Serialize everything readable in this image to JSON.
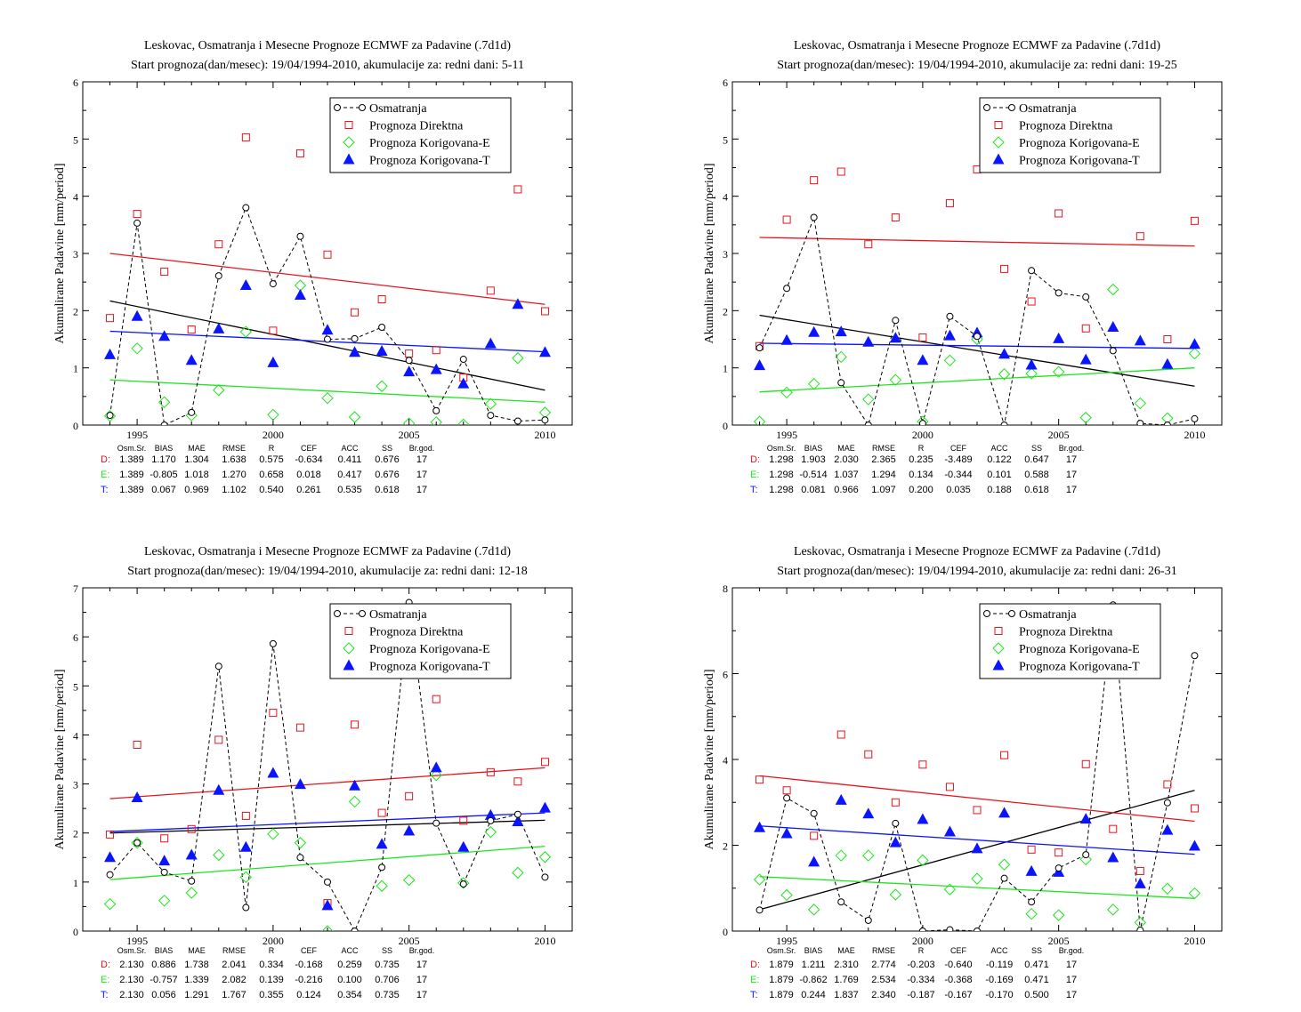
{
  "colors": {
    "observed": "#000000",
    "direct": "#e8141c",
    "corrected_e": "#1ee61e",
    "corrected_t": "#0a14ff"
  },
  "legend": [
    "Osmatranja",
    "Prognoza Direktna",
    "Prognoza Korigovana-E",
    "Prognoza Korigovana-T"
  ],
  "stats_header": [
    "Osm.Sr.",
    "BIAS",
    "MAE",
    "RMSE",
    "R",
    "CEF",
    "ACC",
    "SS",
    "Br.god."
  ],
  "chart_data": [
    {
      "type": "scatter",
      "title": "Leskovac, Osmatranja i Mesecne Prognoze ECMWF za Padavine (.7d1d)",
      "subtitle": "Start prognoza(dan/mesec): 19/04/1994-2010, akumulacije za: redni dani: 5-11",
      "ylabel": "Akumulirane Padavine [mm/period]",
      "xlim": [
        1993,
        2011
      ],
      "ylim": [
        0,
        6
      ],
      "xticks": [
        1995,
        2000,
        2005,
        2010
      ],
      "yticks": [
        0,
        1,
        2,
        3,
        4,
        5,
        6
      ],
      "x": [
        1994,
        1995,
        1996,
        1997,
        1998,
        1999,
        2000,
        2001,
        2002,
        2003,
        2004,
        2005,
        2006,
        2007,
        2008,
        2009,
        2010
      ],
      "series": [
        {
          "name": "Osmatranja",
          "values": [
            0.17,
            3.53,
            0.0,
            0.22,
            2.61,
            3.8,
            2.47,
            3.3,
            1.5,
            1.51,
            1.71,
            1.13,
            0.25,
            1.15,
            0.17,
            0.07,
            0.09
          ]
        },
        {
          "name": "Prognoza Direktna",
          "values": [
            1.87,
            3.69,
            2.68,
            1.67,
            3.16,
            5.03,
            1.65,
            4.75,
            2.98,
            1.97,
            2.2,
            1.25,
            1.31,
            0.83,
            2.35,
            4.12,
            1.99
          ]
        },
        {
          "name": "Prognoza Korigovana-E",
          "values": [
            0.16,
            1.34,
            0.4,
            0.17,
            0.61,
            1.63,
            0.18,
            2.44,
            0.47,
            0.14,
            0.68,
            0.03,
            0.05,
            0.01,
            0.37,
            1.17,
            0.22
          ]
        },
        {
          "name": "Prognoza Korigovana-T",
          "values": [
            1.23,
            1.9,
            1.55,
            1.13,
            1.68,
            2.44,
            1.09,
            2.27,
            1.66,
            1.27,
            1.29,
            0.93,
            0.97,
            0.72,
            1.42,
            2.11,
            1.27
          ]
        }
      ],
      "trend_lines": [
        {
          "series": "Osmatranja",
          "y_start": 2.17,
          "y_end": 0.61
        },
        {
          "series": "Prognoza Direktna",
          "y_start": 3.0,
          "y_end": 2.11
        },
        {
          "series": "Prognoza Korigovana-E",
          "y_start": 0.79,
          "y_end": 0.4
        },
        {
          "series": "Prognoza Korigovana-T",
          "y_start": 1.64,
          "y_end": 1.28
        }
      ],
      "stats": [
        {
          "key": "D:",
          "values": [
            "1.389",
            "1.170",
            "1.304",
            "1.638",
            "0.575",
            "-0.634",
            "0.411",
            "0.676",
            "17"
          ]
        },
        {
          "key": "E:",
          "values": [
            "1.389",
            "-0.805",
            "1.018",
            "1.270",
            "0.658",
            "0.018",
            "0.417",
            "0.676",
            "17"
          ]
        },
        {
          "key": "T:",
          "values": [
            "1.389",
            "0.067",
            "0.969",
            "1.102",
            "0.540",
            "0.261",
            "0.535",
            "0.618",
            "17"
          ]
        }
      ]
    },
    {
      "type": "scatter",
      "title": "Leskovac, Osmatranja i Mesecne Prognoze ECMWF za Padavine (.7d1d)",
      "subtitle": "Start prognoza(dan/mesec): 19/04/1994-2010, akumulacije za: redni dani: 19-25",
      "ylabel": "Akumulirane Padavine [mm/period]",
      "xlim": [
        1993,
        2011
      ],
      "ylim": [
        0,
        6
      ],
      "xticks": [
        1995,
        2000,
        2005,
        2010
      ],
      "yticks": [
        0,
        1,
        2,
        3,
        4,
        5,
        6
      ],
      "x": [
        1994,
        1995,
        1996,
        1997,
        1998,
        1999,
        2000,
        2001,
        2002,
        2003,
        2004,
        2005,
        2006,
        2007,
        2008,
        2009,
        2010
      ],
      "series": [
        {
          "name": "Osmatranja",
          "values": [
            1.35,
            2.39,
            3.63,
            0.74,
            0.0,
            1.83,
            0.03,
            1.9,
            1.55,
            0.0,
            2.7,
            2.31,
            2.24,
            1.3,
            0.03,
            0.0,
            0.11
          ]
        },
        {
          "name": "Prognoza Direktna",
          "values": [
            1.38,
            3.59,
            4.28,
            4.43,
            3.16,
            3.63,
            1.53,
            3.88,
            4.47,
            2.73,
            2.16,
            3.7,
            1.69,
            4.78,
            3.3,
            1.5,
            3.57
          ]
        },
        {
          "name": "Prognoza Korigovana-E",
          "values": [
            0.06,
            0.57,
            0.72,
            1.19,
            0.45,
            0.79,
            0.06,
            1.13,
            1.5,
            0.89,
            0.9,
            0.93,
            0.13,
            2.37,
            0.38,
            0.12,
            1.25
          ]
        },
        {
          "name": "Prognoza Korigovana-T",
          "values": [
            1.04,
            1.48,
            1.62,
            1.63,
            1.45,
            1.52,
            1.13,
            1.56,
            1.61,
            1.24,
            1.05,
            1.51,
            1.14,
            1.71,
            1.47,
            1.06,
            1.41
          ]
        }
      ],
      "trend_lines": [
        {
          "series": "Osmatranja",
          "y_start": 1.92,
          "y_end": 0.68
        },
        {
          "series": "Prognoza Direktna",
          "y_start": 3.28,
          "y_end": 3.13
        },
        {
          "series": "Prognoza Korigovana-E",
          "y_start": 0.58,
          "y_end": 1.0
        },
        {
          "series": "Prognoza Korigovana-T",
          "y_start": 1.43,
          "y_end": 1.34
        }
      ],
      "stats": [
        {
          "key": "D:",
          "values": [
            "1.298",
            "1.903",
            "2.030",
            "2.365",
            "0.235",
            "-3.489",
            "0.122",
            "0.647",
            "17"
          ]
        },
        {
          "key": "E:",
          "values": [
            "1.298",
            "-0.514",
            "1.037",
            "1.294",
            "0.134",
            "-0.344",
            "0.101",
            "0.588",
            "17"
          ]
        },
        {
          "key": "T:",
          "values": [
            "1.298",
            "0.081",
            "0.966",
            "1.097",
            "0.200",
            "0.035",
            "0.188",
            "0.618",
            "17"
          ]
        }
      ]
    },
    {
      "type": "scatter",
      "title": "Leskovac, Osmatranja i Mesecne Prognoze ECMWF za Padavine (.7d1d)",
      "subtitle": "Start prognoza(dan/mesec): 19/04/1994-2010, akumulacije za: redni dani: 12-18",
      "ylabel": "Akumulirane Padavine [mm/period]",
      "xlim": [
        1993,
        2011
      ],
      "ylim": [
        0,
        7
      ],
      "xticks": [
        1995,
        2000,
        2005,
        2010
      ],
      "yticks": [
        0,
        1,
        2,
        3,
        4,
        5,
        6,
        7
      ],
      "x": [
        1994,
        1995,
        1996,
        1997,
        1998,
        1999,
        2000,
        2001,
        2002,
        2003,
        2004,
        2005,
        2006,
        2007,
        2008,
        2009,
        2010
      ],
      "series": [
        {
          "name": "Osmatranja",
          "values": [
            1.15,
            1.8,
            1.2,
            1.02,
            5.4,
            0.48,
            5.86,
            1.5,
            1.0,
            0.0,
            1.3,
            6.7,
            2.2,
            0.96,
            2.25,
            2.38,
            1.1
          ]
        },
        {
          "name": "Prognoza Direktna",
          "values": [
            1.97,
            3.8,
            1.89,
            2.08,
            3.9,
            2.35,
            4.45,
            4.15,
            0.57,
            4.21,
            2.41,
            2.75,
            4.73,
            2.25,
            3.24,
            3.05,
            3.45
          ]
        },
        {
          "name": "Prognoza Korigovana-E",
          "values": [
            0.55,
            1.8,
            0.62,
            0.78,
            1.55,
            1.1,
            1.98,
            1.8,
            0.0,
            2.64,
            0.92,
            1.04,
            3.18,
            0.98,
            2.02,
            1.19,
            1.51
          ]
        },
        {
          "name": "Prognoza Korigovana-T",
          "values": [
            1.5,
            2.72,
            1.43,
            1.55,
            2.87,
            1.71,
            3.22,
            2.99,
            0.52,
            2.96,
            1.77,
            2.04,
            3.33,
            1.71,
            2.36,
            2.23,
            2.51
          ]
        }
      ],
      "trend_lines": [
        {
          "series": "Osmatranja",
          "y_start": 2.0,
          "y_end": 2.26
        },
        {
          "series": "Prognoza Direktna",
          "y_start": 2.7,
          "y_end": 3.33
        },
        {
          "series": "Prognoza Korigovana-E",
          "y_start": 1.05,
          "y_end": 1.73
        },
        {
          "series": "Prognoza Korigovana-T",
          "y_start": 2.03,
          "y_end": 2.41
        }
      ],
      "stats": [
        {
          "key": "D:",
          "values": [
            "2.130",
            "0.886",
            "1.738",
            "2.041",
            "0.334",
            "-0.168",
            "0.259",
            "0.735",
            "17"
          ]
        },
        {
          "key": "E:",
          "values": [
            "2.130",
            "-0.757",
            "1.339",
            "2.082",
            "0.139",
            "-0.216",
            "0.100",
            "0.706",
            "17"
          ]
        },
        {
          "key": "T:",
          "values": [
            "2.130",
            "0.056",
            "1.291",
            "1.767",
            "0.355",
            "0.124",
            "0.354",
            "0.735",
            "17"
          ]
        }
      ]
    },
    {
      "type": "scatter",
      "title": "Leskovac, Osmatranja i Mesecne Prognoze ECMWF za Padavine (.7d1d)",
      "subtitle": "Start prognoza(dan/mesec): 19/04/1994-2010, akumulacije za: redni dani: 26-31",
      "ylabel": "Akumulirane Padavine [mm/period]",
      "xlim": [
        1993,
        2011
      ],
      "ylim": [
        0,
        8
      ],
      "xticks": [
        1995,
        2000,
        2005,
        2010
      ],
      "yticks": [
        0,
        2,
        4,
        6,
        8
      ],
      "x": [
        1994,
        1995,
        1996,
        1997,
        1998,
        1999,
        2000,
        2001,
        2002,
        2003,
        2004,
        2005,
        2006,
        2007,
        2008,
        2009,
        2010
      ],
      "series": [
        {
          "name": "Osmatranja",
          "values": [
            0.49,
            3.1,
            2.74,
            0.68,
            0.25,
            2.51,
            0.0,
            0.03,
            0.0,
            1.23,
            0.68,
            1.47,
            1.78,
            7.6,
            0.02,
            2.99,
            6.42
          ]
        },
        {
          "name": "Prognoza Direktna",
          "values": [
            3.53,
            3.28,
            2.22,
            4.58,
            4.12,
            3.0,
            3.88,
            3.36,
            2.82,
            4.1,
            1.9,
            1.83,
            3.89,
            2.38,
            1.4,
            3.42,
            2.86
          ]
        },
        {
          "name": "Prognoza Korigovana-E",
          "values": [
            1.2,
            0.84,
            0.5,
            1.76,
            1.76,
            0.85,
            1.65,
            0.97,
            1.22,
            1.55,
            0.4,
            0.37,
            1.67,
            0.5,
            0.2,
            0.99,
            0.88
          ]
        },
        {
          "name": "Prognoza Korigovana-T",
          "values": [
            2.41,
            2.27,
            1.61,
            3.05,
            2.73,
            2.06,
            2.6,
            2.31,
            1.92,
            2.75,
            1.39,
            1.37,
            2.61,
            1.71,
            1.1,
            2.35,
            1.98
          ]
        }
      ],
      "trend_lines": [
        {
          "series": "Osmatranja",
          "y_start": 0.5,
          "y_end": 3.28
        },
        {
          "series": "Prognoza Direktna",
          "y_start": 3.62,
          "y_end": 2.56
        },
        {
          "series": "Prognoza Korigovana-E",
          "y_start": 1.27,
          "y_end": 0.76
        },
        {
          "series": "Prognoza Korigovana-T",
          "y_start": 2.45,
          "y_end": 1.79
        }
      ],
      "stats": [
        {
          "key": "D:",
          "values": [
            "1.879",
            "1.211",
            "2.310",
            "2.774",
            "-0.203",
            "-0.640",
            "-0.119",
            "0.471",
            "17"
          ]
        },
        {
          "key": "E:",
          "values": [
            "1.879",
            "-0.862",
            "1.769",
            "2.534",
            "-0.334",
            "-0.368",
            "-0.169",
            "0.471",
            "17"
          ]
        },
        {
          "key": "T:",
          "values": [
            "1.879",
            "0.244",
            "1.837",
            "2.340",
            "-0.187",
            "-0.167",
            "-0.170",
            "0.500",
            "17"
          ]
        }
      ]
    }
  ]
}
